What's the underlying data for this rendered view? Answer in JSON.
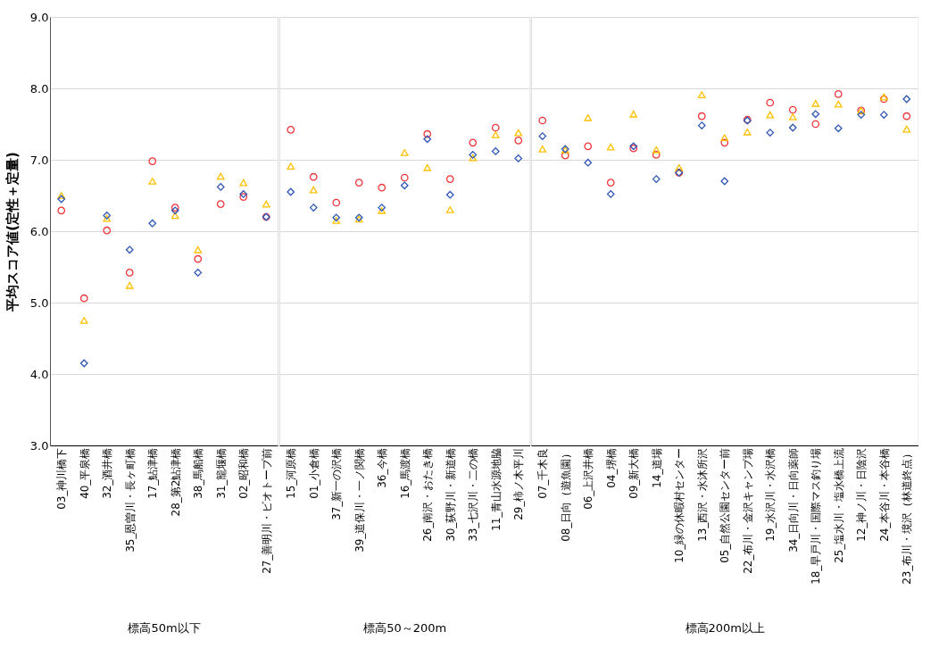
{
  "chart_data": [
    {
      "type": "scatter",
      "ylabel": "平均スコア値(定性＋定量)",
      "xlabel": "標高50m以下",
      "categories": [
        "03_神川橋下",
        "40_平泉橋",
        "32_酒井橋",
        "35_恩曽川・長ヶ町橋",
        "17_鮎津橋",
        "28_第2鮎津橋",
        "38_馬船橋",
        "31_籠堰橋",
        "02_昭和橋",
        "27_善明川・ビオトープ前"
      ],
      "ylim": [
        3,
        9
      ],
      "yticks": [
        {
          "value": 3,
          "label": "3.0"
        },
        {
          "value": 4,
          "label": "4.0"
        },
        {
          "value": 5,
          "label": "5.0"
        },
        {
          "value": 6,
          "label": "6.0"
        },
        {
          "value": 7,
          "label": "7.0"
        },
        {
          "value": 8,
          "label": "8.0"
        },
        {
          "value": 9,
          "label": "9.0"
        }
      ],
      "grid": "y",
      "series": [
        {
          "color": "#f0353a",
          "marker": "circle",
          "values": [
            6.29,
            5.06,
            6.01,
            5.42,
            6.98,
            6.33,
            5.61,
            6.38,
            6.48,
            6.2
          ]
        },
        {
          "color": "#ffc000",
          "marker": "triangle",
          "values": [
            6.5,
            4.75,
            6.18,
            5.24,
            6.7,
            6.22,
            5.74,
            6.77,
            6.68,
            6.38
          ]
        },
        {
          "color": "#2e56b5",
          "marker": "diamond",
          "values": [
            6.45,
            4.15,
            6.22,
            5.74,
            6.11,
            6.29,
            5.42,
            6.62,
            6.52,
            6.2
          ]
        }
      ]
    },
    {
      "type": "scatter",
      "xlabel": "標高50～200m",
      "tick_labels": "x",
      "categories": [
        "15_河原橋",
        "01_小倉橋",
        "37_新一の沢橋",
        "39_道保川・一ノ関橋",
        "36_今橋",
        "16_馬渡橋",
        "26_南沢・おたき橋",
        "30_荻野川・新道橋",
        "33_七沢川・二の橋",
        "11_青山水源地脇",
        "29_柿ノ木平川"
      ],
      "ylim": [
        3,
        9
      ],
      "yticks": [
        3,
        4,
        5,
        6,
        7,
        8,
        9
      ],
      "grid": "y",
      "series": [
        {
          "color": "#f0353a",
          "marker": "circle",
          "values": [
            7.42,
            6.76,
            6.4,
            6.68,
            6.61,
            6.75,
            7.36,
            6.73,
            7.24,
            7.45,
            7.27
          ]
        },
        {
          "color": "#ffc000",
          "marker": "triangle",
          "values": [
            6.91,
            6.58,
            6.15,
            6.17,
            6.29,
            7.1,
            6.89,
            6.3,
            7.03,
            7.35,
            7.38
          ]
        },
        {
          "color": "#2e56b5",
          "marker": "diamond",
          "values": [
            6.55,
            6.33,
            6.19,
            6.19,
            6.33,
            6.64,
            7.29,
            6.51,
            7.07,
            7.12,
            7.02
          ]
        }
      ]
    },
    {
      "type": "scatter",
      "xlabel": "標高200m以上",
      "tick_labels": "x",
      "categories": [
        "07_千木良",
        "08_日向（遊魚園）",
        "06_上沢井橋",
        "04_堺橋",
        "09_新大橋",
        "14_道場",
        "10_緑の休暇村センター",
        "13_西沢・水沐所沢",
        "05_自然公園センター前",
        "22_布川・金沢キャンプ場",
        "19_水沢川・水沢橋",
        "34_日向川・日向薬師",
        "18_早戸川・国際マス釣り場",
        "25_塩水川・塩水橋上流",
        "12_神ノ川・日陰沢",
        "24_本谷川・本谷橋",
        "23_布川・境沢（林道終点）"
      ],
      "ylim": [
        3,
        9
      ],
      "yticks": [
        3,
        4,
        5,
        6,
        7,
        8,
        9
      ],
      "grid": "y",
      "series": [
        {
          "color": "#f0353a",
          "marker": "circle",
          "values": [
            7.55,
            7.06,
            7.19,
            6.68,
            7.16,
            7.07,
            6.82,
            7.61,
            7.24,
            7.56,
            7.8,
            7.7,
            7.5,
            7.92,
            7.69,
            7.85,
            7.61
          ]
        },
        {
          "color": "#ffc000",
          "marker": "triangle",
          "values": [
            7.15,
            7.14,
            7.59,
            7.18,
            7.64,
            7.14,
            6.89,
            7.91,
            7.31,
            7.39,
            7.63,
            7.6,
            7.79,
            7.78,
            7.69,
            7.88,
            7.43
          ]
        },
        {
          "color": "#2e56b5",
          "marker": "diamond",
          "values": [
            7.33,
            7.15,
            6.96,
            6.52,
            7.19,
            6.73,
            6.82,
            7.48,
            6.7,
            7.55,
            7.38,
            7.45,
            7.64,
            7.44,
            7.63,
            7.63,
            7.85
          ]
        }
      ]
    }
  ]
}
